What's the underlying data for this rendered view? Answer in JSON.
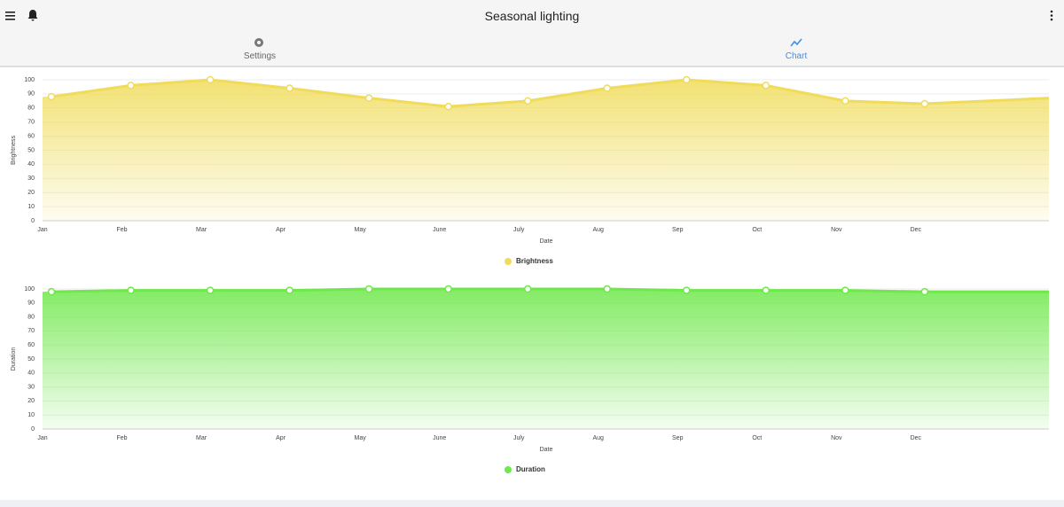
{
  "header": {
    "title": "Seasonal lighting"
  },
  "tabs": [
    {
      "label": "Settings"
    },
    {
      "label": "Chart"
    }
  ],
  "chart_data": [
    {
      "type": "area",
      "x_label": "Date",
      "y_label": "Brightness",
      "categories": [
        "Jan",
        "Feb",
        "Mar",
        "Apr",
        "May",
        "June",
        "July",
        "Aug",
        "Sep",
        "Oct",
        "Nov",
        "Dec",
        null
      ],
      "series": [
        {
          "name": "Brightness",
          "color": "#f0dc5a",
          "values": [
            88,
            96,
            100,
            94,
            87,
            81,
            85,
            94,
            100,
            96,
            85,
            83,
            87
          ]
        }
      ],
      "ylim": [
        0,
        100
      ],
      "yticks": [
        0,
        10,
        20,
        30,
        40,
        50,
        60,
        70,
        80,
        90,
        100
      ],
      "grid": true,
      "legend": "bottom"
    },
    {
      "type": "area",
      "x_label": "Date",
      "y_label": "Duration",
      "categories": [
        "Jan",
        "Feb",
        "Mar",
        "Apr",
        "May",
        "June",
        "July",
        "Aug",
        "Sep",
        "Oct",
        "Nov",
        "Dec",
        null
      ],
      "series": [
        {
          "name": "Duration",
          "color": "#6ee84a",
          "values": [
            98,
            99,
            99,
            99,
            100,
            100,
            100,
            100,
            99,
            99,
            99,
            98,
            98
          ]
        }
      ],
      "ylim": [
        0,
        100
      ],
      "yticks": [
        0,
        10,
        20,
        30,
        40,
        50,
        60,
        70,
        80,
        90,
        100
      ],
      "grid": true,
      "legend": "bottom"
    }
  ]
}
